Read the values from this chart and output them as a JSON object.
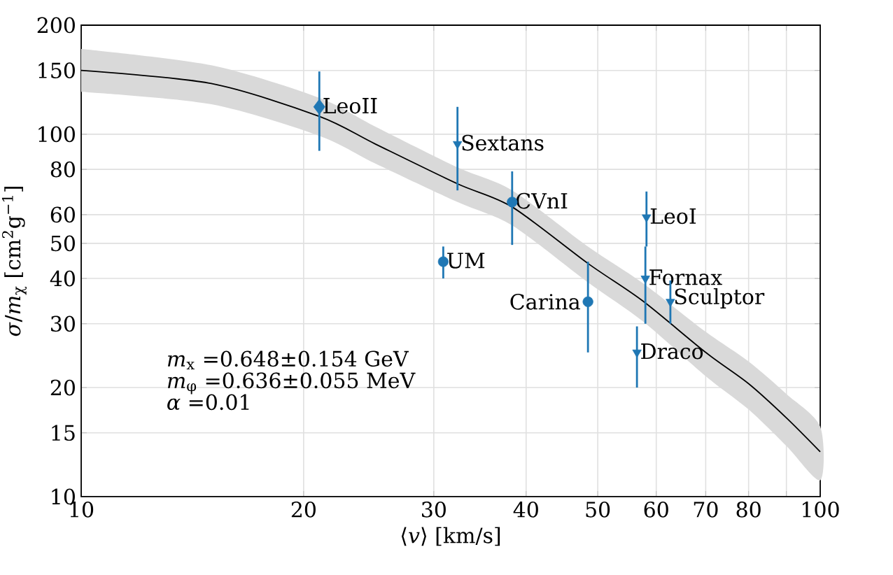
{
  "chart_data": {
    "type": "scatter",
    "log": "xy",
    "grid": true,
    "xlabel": "⟨*v*⟩ [km/s]",
    "ylabel": "*σ*/*m*$_{χ}$ [cm$^{2}$g$^{−1}$]",
    "xlim": [
      10,
      100
    ],
    "ylim": [
      10,
      200
    ],
    "xticks": [
      10,
      20,
      30,
      40,
      50,
      60,
      70,
      80,
      {
        "value": 90,
        "label": null
      },
      100
    ],
    "yticks": [
      10,
      15,
      20,
      30,
      40,
      50,
      60,
      80,
      100,
      150,
      200
    ],
    "annotations": [
      "*m*$_{x}$ =0.648±0.154 GeV",
      "*m*$_{φ}$ =0.636±0.055 MeV",
      "*α* =0.01"
    ],
    "series": [
      {
        "type": "line",
        "color": "#000000",
        "x": [
          10,
          15,
          21,
          25,
          32.3,
          38.3,
          48.5,
          57.5,
          70,
          80,
          90,
          100
        ],
        "values": [
          150,
          138,
          112,
          94,
          73,
          63,
          44,
          34.7,
          25,
          20.5,
          16.5,
          13.3
        ],
        "lower": [
          131,
          121,
          99,
          83,
          65,
          56,
          39,
          30.5,
          21.5,
          17.4,
          13.8,
          11.1
        ],
        "upper": [
          172,
          155,
          126,
          105,
          81,
          70,
          49,
          38.9,
          28.5,
          23.6,
          19.2,
          15.6
        ]
      },
      {
        "name": "LeoII",
        "marker": "diamond",
        "color": "#1f77b4",
        "x": [
          21.0
        ],
        "values": [
          119
        ],
        "errors": [
          [
            90,
            149
          ]
        ]
      },
      {
        "name": "Sextans",
        "marker": "triangle",
        "color": "#1f77b4",
        "x": [
          32.3
        ],
        "values": [
          94
        ],
        "errors": [
          [
            70,
            119
          ]
        ]
      },
      {
        "name": "CVnI",
        "marker": "circle",
        "color": "#1f77b4",
        "x": [
          38.3
        ],
        "values": [
          65
        ],
        "errors": [
          [
            49.5,
            79
          ]
        ]
      },
      {
        "name": "UM",
        "marker": "circle",
        "color": "#1f77b4",
        "x": [
          30.9
        ],
        "values": [
          44.5
        ],
        "errors": [
          [
            40,
            49
          ]
        ]
      },
      {
        "name": "Carina",
        "marker": "circle",
        "color": "#1f77b4",
        "x": [
          48.5
        ],
        "values": [
          34.5
        ],
        "errors": [
          [
            25,
            44.5
          ]
        ]
      },
      {
        "name": "LeoI",
        "marker": "triangle",
        "color": "#1f77b4",
        "x": [
          58.2
        ],
        "values": [
          59
        ],
        "errors": [
          [
            49,
            69.5
          ]
        ]
      },
      {
        "name": "Fornax",
        "marker": "triangle",
        "color": "#1f77b4",
        "x": [
          58.0
        ],
        "values": [
          40
        ],
        "errors": [
          [
            30,
            49
          ]
        ]
      },
      {
        "name": "Sculptor",
        "marker": "triangle",
        "color": "#1f77b4",
        "x": [
          62.7
        ],
        "values": [
          34.5
        ],
        "errors": [
          [
            30,
            39.5
          ]
        ]
      },
      {
        "name": "Draco",
        "marker": "triangle",
        "color": "#1f77b4",
        "x": [
          56.5
        ],
        "values": [
          25
        ],
        "errors": [
          [
            20,
            29.5
          ]
        ]
      }
    ]
  }
}
